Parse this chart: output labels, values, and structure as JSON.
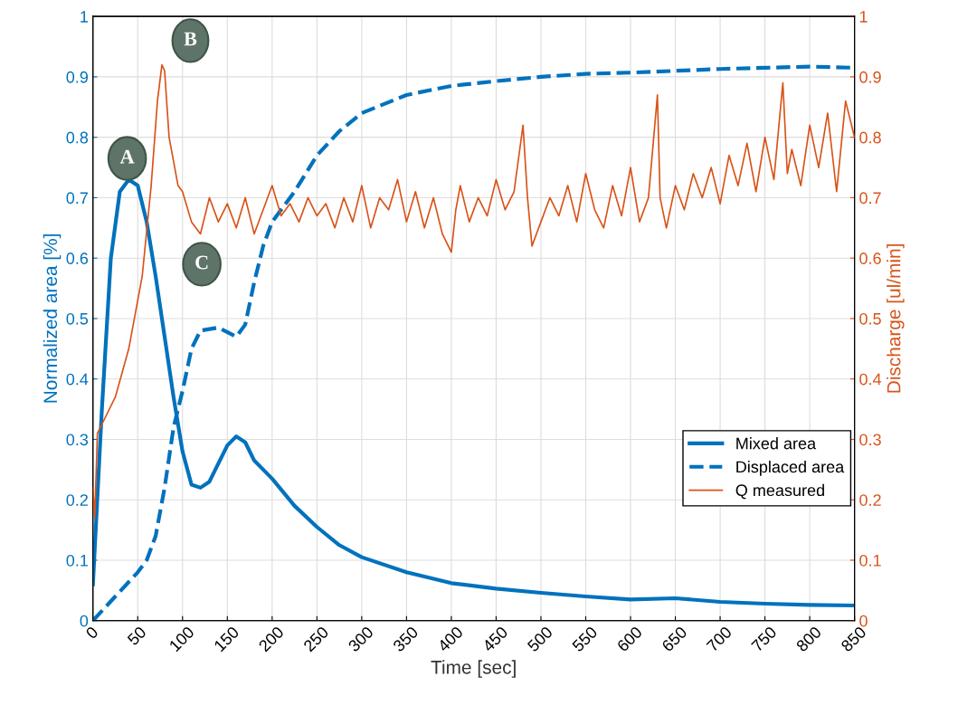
{
  "chart_data": {
    "type": "line",
    "xlabel": "Time [sec]",
    "ylabel": "Normalized area [%]",
    "y2label": "Discharge [ul/min]",
    "xlim": [
      0,
      850
    ],
    "xticks": [
      0,
      50,
      100,
      150,
      200,
      250,
      300,
      350,
      400,
      450,
      500,
      550,
      600,
      650,
      700,
      750,
      800,
      850
    ],
    "ylim": [
      0,
      1
    ],
    "yticks": [
      0,
      0.1,
      0.2,
      0.3,
      0.4,
      0.5,
      0.6,
      0.7,
      0.8,
      0.9,
      1
    ],
    "y2lim": [
      0,
      1
    ],
    "y2ticks": [
      0,
      0.1,
      0.2,
      0.3,
      0.4,
      0.5,
      0.6,
      0.7,
      0.8,
      0.9,
      1
    ],
    "grid": true,
    "legend": "bottom right",
    "series": [
      {
        "name": "Mixed area",
        "color": "#0072bd",
        "line_style": "solid",
        "x": [
          0,
          10,
          20,
          30,
          40,
          50,
          60,
          70,
          80,
          90,
          100,
          110,
          120,
          130,
          140,
          150,
          160,
          170,
          180,
          200,
          225,
          250,
          275,
          300,
          350,
          400,
          450,
          500,
          550,
          600,
          650,
          700,
          750,
          800,
          850
        ],
        "values": [
          0.06,
          0.35,
          0.6,
          0.71,
          0.73,
          0.72,
          0.66,
          0.57,
          0.47,
          0.37,
          0.28,
          0.225,
          0.22,
          0.23,
          0.26,
          0.29,
          0.305,
          0.295,
          0.265,
          0.235,
          0.19,
          0.155,
          0.125,
          0.105,
          0.08,
          0.062,
          0.053,
          0.046,
          0.04,
          0.035,
          0.037,
          0.031,
          0.028,
          0.026,
          0.025
        ]
      },
      {
        "name": "Displaced area",
        "color": "#0072bd",
        "line_style": "dashed",
        "x": [
          0,
          25,
          50,
          60,
          70,
          80,
          90,
          100,
          110,
          120,
          140,
          160,
          170,
          180,
          190,
          200,
          225,
          250,
          275,
          300,
          350,
          400,
          450,
          500,
          550,
          600,
          650,
          700,
          750,
          800,
          850
        ],
        "values": [
          0,
          0.04,
          0.08,
          0.1,
          0.14,
          0.22,
          0.32,
          0.38,
          0.45,
          0.48,
          0.485,
          0.47,
          0.49,
          0.56,
          0.62,
          0.66,
          0.71,
          0.77,
          0.81,
          0.84,
          0.87,
          0.885,
          0.893,
          0.9,
          0.905,
          0.907,
          0.91,
          0.913,
          0.915,
          0.917,
          0.915
        ]
      },
      {
        "name": "Q measured",
        "color": "#d95319",
        "line_style": "solid",
        "axis": "y2",
        "x": [
          0,
          2,
          5,
          15,
          25,
          40,
          55,
          65,
          72,
          77,
          80,
          85,
          95,
          100,
          110,
          120,
          130,
          140,
          150,
          160,
          170,
          180,
          190,
          200,
          210,
          220,
          230,
          240,
          250,
          260,
          270,
          280,
          290,
          300,
          310,
          320,
          330,
          340,
          350,
          360,
          370,
          380,
          390,
          400,
          405,
          410,
          420,
          430,
          440,
          450,
          460,
          470,
          480,
          485,
          490,
          500,
          510,
          520,
          530,
          540,
          550,
          560,
          570,
          580,
          590,
          600,
          610,
          620,
          630,
          633,
          640,
          650,
          660,
          670,
          680,
          690,
          700,
          710,
          720,
          730,
          740,
          750,
          760,
          770,
          775,
          780,
          790,
          800,
          810,
          820,
          830,
          840,
          850
        ],
        "values": [
          0.22,
          0.17,
          0.31,
          0.34,
          0.37,
          0.45,
          0.57,
          0.72,
          0.86,
          0.92,
          0.91,
          0.8,
          0.72,
          0.71,
          0.66,
          0.64,
          0.7,
          0.66,
          0.69,
          0.65,
          0.7,
          0.64,
          0.68,
          0.72,
          0.67,
          0.69,
          0.66,
          0.7,
          0.67,
          0.69,
          0.65,
          0.7,
          0.66,
          0.72,
          0.65,
          0.7,
          0.68,
          0.73,
          0.66,
          0.71,
          0.65,
          0.7,
          0.64,
          0.61,
          0.68,
          0.72,
          0.66,
          0.7,
          0.67,
          0.73,
          0.68,
          0.71,
          0.82,
          0.7,
          0.62,
          0.66,
          0.7,
          0.67,
          0.72,
          0.66,
          0.74,
          0.68,
          0.65,
          0.72,
          0.67,
          0.75,
          0.66,
          0.7,
          0.87,
          0.7,
          0.65,
          0.72,
          0.68,
          0.74,
          0.7,
          0.75,
          0.69,
          0.77,
          0.72,
          0.79,
          0.71,
          0.8,
          0.73,
          0.89,
          0.74,
          0.78,
          0.72,
          0.82,
          0.75,
          0.84,
          0.71,
          0.86,
          0.8
        ]
      }
    ],
    "annotations": [
      "A",
      "B",
      "C"
    ]
  }
}
